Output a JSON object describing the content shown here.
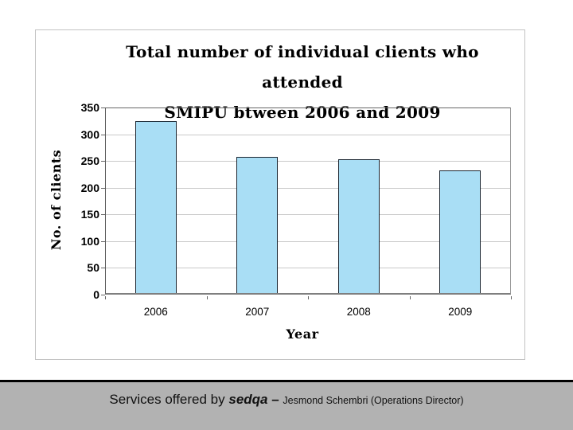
{
  "slide": {
    "chart": {
      "title_line1": "Total number of individual clients who attended",
      "title_line2": "SMIPU btween 2006 and 2009"
    },
    "footer": {
      "prefix": "Services offered by ",
      "brand": "sedqa",
      "separator": " – ",
      "credit": "Jesmond Schembri (Operations Director)"
    }
  },
  "chart_data": {
    "type": "bar",
    "categories": [
      "2006",
      "2007",
      "2008",
      "2009"
    ],
    "values": [
      325,
      257,
      253,
      233
    ],
    "title": "Total number of individual clients who attended SMIPU btween 2006 and 2009",
    "xlabel": "Year",
    "ylabel": "No. of clients",
    "ylim": [
      0,
      350
    ],
    "ytick_step": 50,
    "grid": true,
    "legend": false,
    "bar_color": "#a9def5",
    "bar_border_color": "#1a2530"
  }
}
